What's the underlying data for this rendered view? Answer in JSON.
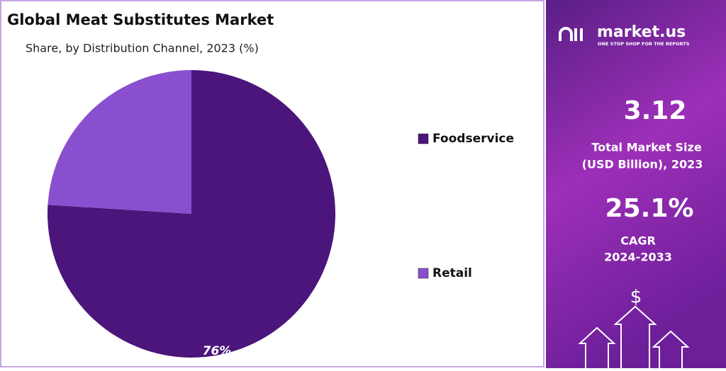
{
  "chart_data": {
    "type": "pie",
    "title": "Global Meat Substitutes Market",
    "subtitle": "Share, by Distribution Channel, 2023 (%)",
    "categories": [
      "Foodservice",
      "Retail"
    ],
    "values": [
      76,
      24
    ],
    "value_labels": [
      "76%",
      null
    ],
    "colors": [
      "#4b157b",
      "#8a4fcf"
    ]
  },
  "panel": {
    "brand": "market.us",
    "tagline": "ONE STOP SHOP FOR THE REPORTS",
    "market_size": "3.12",
    "market_size_label": [
      "Total Market Size",
      "(USD Billion), 2023"
    ],
    "cagr": "25.1%",
    "cagr_label": [
      "CAGR",
      "2024-2033"
    ],
    "icon": "$"
  }
}
